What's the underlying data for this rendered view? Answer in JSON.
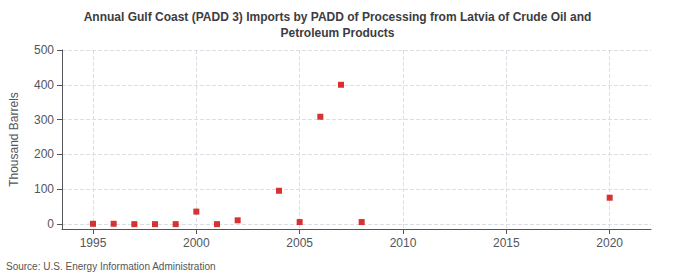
{
  "chart_data": {
    "type": "scatter",
    "title": "Annual Gulf Coast (PADD 3) Imports by PADD of Processing from Latvia of Crude Oil and\nPetroleum Products",
    "ylabel": "Thousand Barrels",
    "source": "Source: U.S. Energy Information Administration",
    "x": [
      1995,
      1996,
      1997,
      1998,
      1999,
      2000,
      2001,
      2002,
      2004,
      2005,
      2006,
      2007,
      2008,
      2020
    ],
    "values": [
      0,
      0,
      -1,
      -1,
      -1,
      35,
      -1,
      10,
      95,
      5,
      308,
      400,
      5,
      75
    ],
    "color": "#cc0000",
    "marker": "square",
    "xlim": [
      1993.5,
      2022
    ],
    "ylim": [
      -15,
      500
    ],
    "xticks": [
      1995,
      2000,
      2005,
      2010,
      2015,
      2020
    ],
    "yticks": [
      0,
      100,
      200,
      300,
      400,
      500
    ],
    "grid": true
  }
}
